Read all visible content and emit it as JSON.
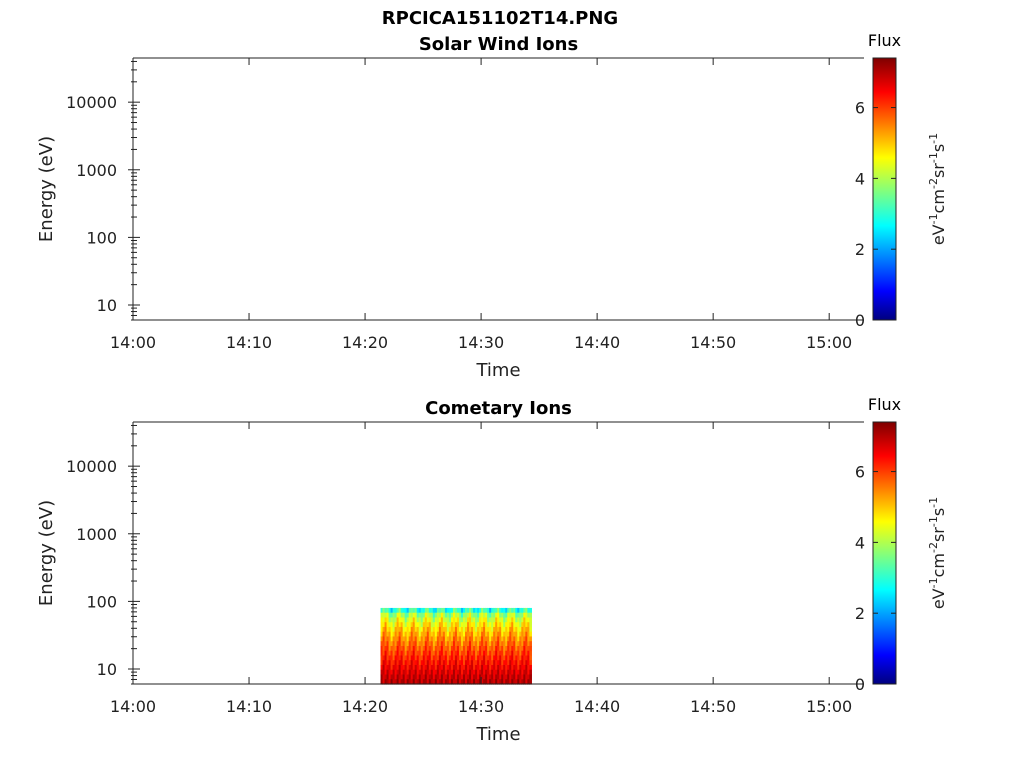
{
  "figure_title": "RPCICA151102T14.PNG",
  "chart_data": [
    {
      "type": "heatmap",
      "title": "Solar Wind Ions",
      "xlabel": "Time",
      "ylabel": "Energy (eV)",
      "yscale": "log",
      "xlim": [
        "14:00",
        "15:03"
      ],
      "ylim": [
        6,
        45000
      ],
      "xticks": [
        "14:00",
        "14:10",
        "14:20",
        "14:30",
        "14:40",
        "14:50",
        "15:00"
      ],
      "yticks": [
        10,
        100,
        1000,
        10000
      ],
      "ytick_labels": [
        "10",
        "100",
        "1000",
        "10000"
      ],
      "colorbar": {
        "title": "Flux",
        "label": "eV-1cm-2sr-1s-1",
        "range": [
          0,
          7.4
        ],
        "ticks": [
          0,
          2,
          4,
          6
        ],
        "colormap": "jet"
      },
      "data_region": null
    },
    {
      "type": "heatmap",
      "title": "Cometary Ions",
      "xlabel": "Time",
      "ylabel": "Energy (eV)",
      "yscale": "log",
      "xlim": [
        "14:00",
        "15:03"
      ],
      "ylim": [
        6,
        45000
      ],
      "xticks": [
        "14:00",
        "14:10",
        "14:20",
        "14:30",
        "14:40",
        "14:50",
        "15:00"
      ],
      "yticks": [
        10,
        100,
        1000,
        10000
      ],
      "ytick_labels": [
        "10",
        "100",
        "1000",
        "10000"
      ],
      "colorbar": {
        "title": "Flux",
        "label": "eV-1cm-2sr-1s-1",
        "range": [
          0,
          7.4
        ],
        "ticks": [
          0,
          2,
          4,
          6
        ],
        "colormap": "jet"
      },
      "data_region": {
        "time_start": "14:21:20",
        "time_end": "14:34:20",
        "energy_min": 6,
        "energy_max": 80,
        "flux_low_energy": 7,
        "flux_high_energy": 3
      }
    }
  ]
}
